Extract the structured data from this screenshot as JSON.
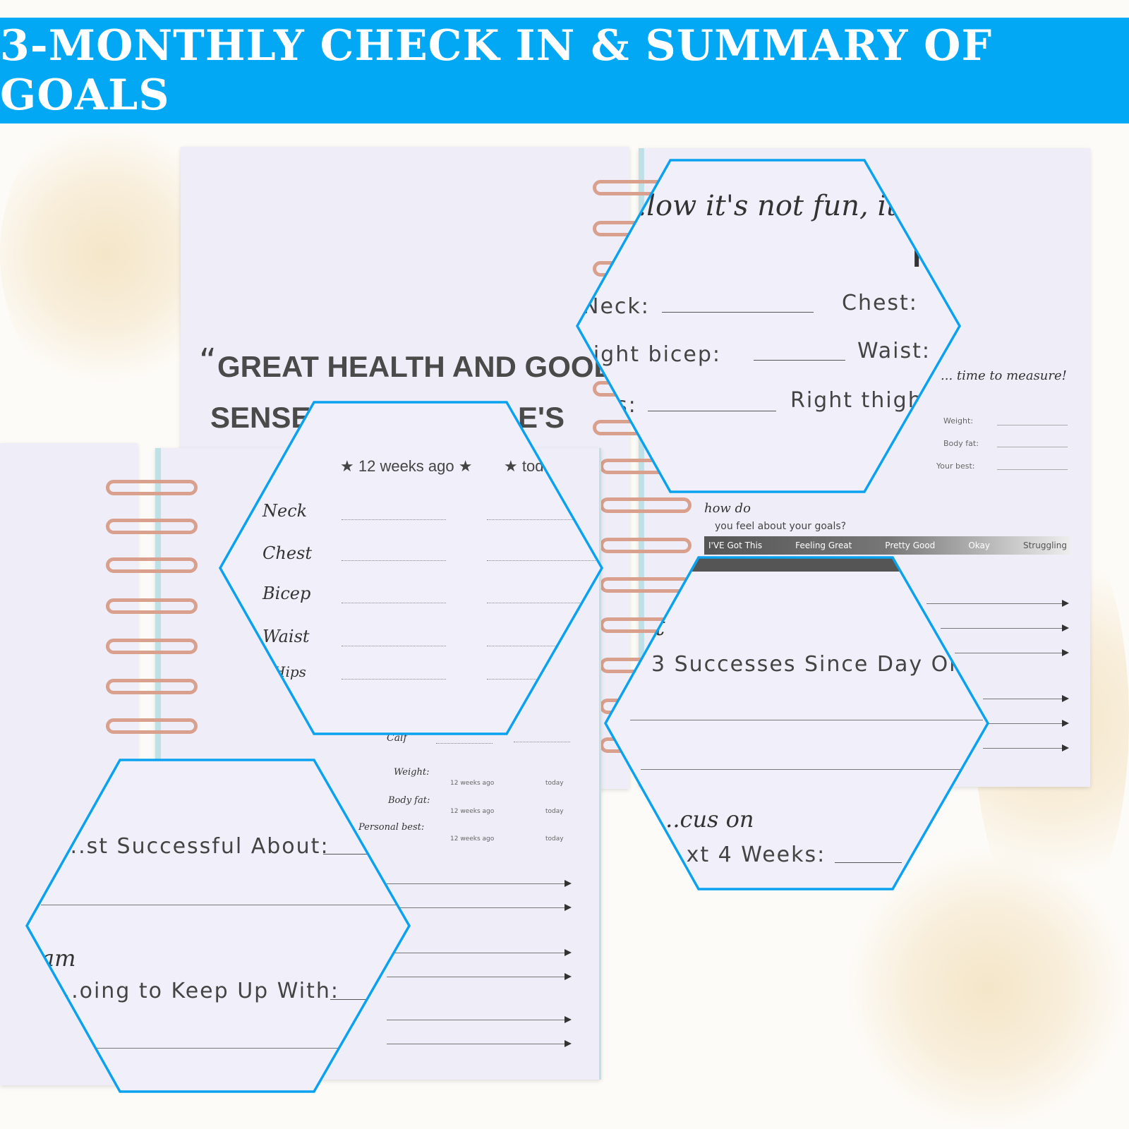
{
  "banner": {
    "title": "3-MONTHLY CHECK IN & SUMMARY OF GOALS"
  },
  "quote": {
    "open": "“",
    "line1": "GREAT HEALTH AND GOOD",
    "line2_left": "SENSE",
    "line2_right": "E'S"
  },
  "measure": {
    "col_12": "12 weeks ago",
    "col_today": "today",
    "star": "★",
    "rows": [
      "Neck",
      "Chest",
      "Bicep",
      "Waist",
      "Hips"
    ],
    "calf": "Calf",
    "stats": [
      {
        "label": "Weight:",
        "a": "12 weeks ago",
        "b": "today"
      },
      {
        "label": "Body fat:",
        "a": "12 weeks ago",
        "b": "today"
      },
      {
        "label": "Personal best:",
        "a": "12 weeks ago",
        "b": "today"
      }
    ]
  },
  "right_page": {
    "script_title": "...low it's not fun, it only",
    "banner_letter": "N",
    "neck": "Neck:",
    "chest": "Chest:",
    "right_bicep": "Right bicep:",
    "waist": "Waist:",
    "hips": "s:",
    "right_thigh": "Right thigh",
    "time_to_measure": "... time to measure!",
    "weight": "Weight:",
    "body_fat": "Body fat:",
    "your_best": "Your best:",
    "how_do": "how do",
    "feel": "you feel about your goals?",
    "scale": [
      "I'VE Got This",
      "Feeling Great",
      "Pretty Good",
      "Okay",
      "Struggling"
    ],
    "successes": "3 Successes Since Day One",
    "focus": "...cus on",
    "next": "...xt 4 Weeks:",
    "lead": "t"
  },
  "left_bottom": {
    "most_successful": "...st Successful About:",
    "am": "am",
    "keep_up": "...oing to Keep Up With:"
  },
  "colors": {
    "banner": "#02a8f3",
    "hex_outline": "#0aa2ef",
    "ring": "#d9a08e"
  }
}
